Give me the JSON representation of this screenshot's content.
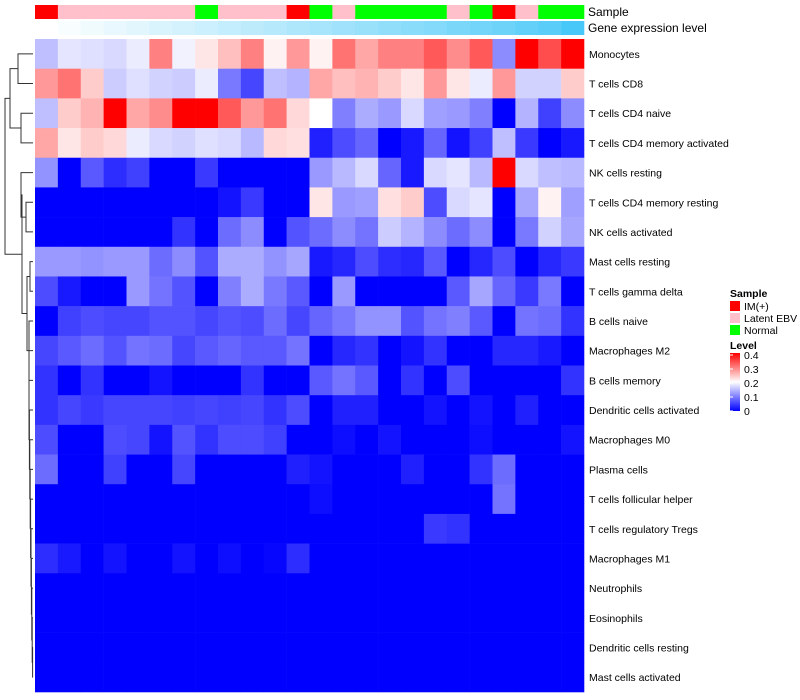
{
  "chart_data": {
    "type": "heatmap",
    "title": "",
    "annotation_labels": {
      "sample": "Sample",
      "gene_expression": "Gene expression level"
    },
    "rows": [
      "Monocytes",
      "T cells CD8",
      "T cells CD4 naive",
      "T cells CD4 memory activated",
      "NK cells resting",
      "T cells CD4 memory resting",
      "NK cells activated",
      "Mast cells resting",
      "T cells gamma delta",
      "B cells naive",
      "Macrophages M2",
      "B cells memory",
      "Dendritic cells activated",
      "Macrophages M0",
      "Plasma cells",
      "T cells follicular helper",
      "T cells regulatory  Tregs",
      "Macrophages M1",
      "Neutrophils",
      "Eosinophils",
      "Dendritic cells resting",
      "Mast cells activated"
    ],
    "sample_groups": [
      "IM(+)",
      "Latent EBV",
      "Latent EBV",
      "Latent EBV",
      "Latent EBV",
      "Latent EBV",
      "Latent EBV",
      "Normal",
      "Latent EBV",
      "Latent EBV",
      "Latent EBV",
      "IM(+)",
      "Normal",
      "Latent EBV",
      "Normal",
      "Normal",
      "Normal",
      "Normal",
      "Latent EBV",
      "Normal",
      "IM(+)",
      "Latent EBV",
      "Normal",
      "Normal"
    ],
    "gene_expression_level": [
      0.0,
      0.04,
      0.08,
      0.12,
      0.16,
      0.2,
      0.24,
      0.28,
      0.32,
      0.36,
      0.4,
      0.44,
      0.48,
      0.52,
      0.56,
      0.6,
      0.64,
      0.68,
      0.72,
      0.76,
      0.8,
      0.85,
      0.9,
      1.0
    ],
    "values": [
      [
        0.15,
        0.18,
        0.175,
        0.17,
        0.185,
        0.3,
        0.19,
        0.22,
        0.25,
        0.3,
        0.21,
        0.28,
        0.21,
        0.31,
        0.27,
        0.3,
        0.3,
        0.33,
        0.29,
        0.33,
        0.11,
        0.4,
        0.34,
        0.4
      ],
      [
        0.28,
        0.31,
        0.24,
        0.16,
        0.175,
        0.165,
        0.16,
        0.185,
        0.095,
        0.055,
        0.15,
        0.14,
        0.27,
        0.25,
        0.26,
        0.24,
        0.22,
        0.28,
        0.22,
        0.185,
        0.28,
        0.165,
        0.165,
        0.24
      ],
      [
        0.15,
        0.24,
        0.26,
        0.4,
        0.27,
        0.29,
        0.4,
        0.4,
        0.33,
        0.28,
        0.31,
        0.23,
        0.2,
        0.1,
        0.135,
        0.12,
        0.17,
        0.125,
        0.12,
        0.1,
        0.0,
        0.14,
        0.05,
        0.11
      ],
      [
        0.27,
        0.22,
        0.24,
        0.23,
        0.185,
        0.17,
        0.165,
        0.175,
        0.17,
        0.145,
        0.23,
        0.225,
        0.025,
        0.06,
        0.08,
        0.0,
        0.02,
        0.08,
        0.015,
        0.05,
        0.15,
        0.045,
        0.0,
        0.02
      ],
      [
        0.115,
        0.0,
        0.07,
        0.035,
        0.05,
        0.0,
        0.0,
        0.045,
        0.0,
        0.0,
        0.0,
        0.0,
        0.12,
        0.145,
        0.17,
        0.08,
        0.02,
        0.17,
        0.18,
        0.145,
        0.4,
        0.17,
        0.15,
        0.145
      ],
      [
        0.0,
        0.0,
        0.0,
        0.0,
        0.0,
        0.0,
        0.0,
        0.0,
        0.015,
        0.045,
        0.0,
        0.0,
        0.22,
        0.12,
        0.125,
        0.225,
        0.24,
        0.06,
        0.17,
        0.18,
        0.0,
        0.13,
        0.21,
        0.125
      ],
      [
        0.0,
        0.0,
        0.0,
        0.0,
        0.0,
        0.0,
        0.04,
        0.0,
        0.085,
        0.11,
        0.0,
        0.065,
        0.085,
        0.11,
        0.09,
        0.16,
        0.14,
        0.11,
        0.085,
        0.11,
        0.0,
        0.095,
        0.165,
        0.13
      ],
      [
        0.12,
        0.12,
        0.115,
        0.12,
        0.12,
        0.085,
        0.11,
        0.065,
        0.135,
        0.135,
        0.115,
        0.13,
        0.02,
        0.03,
        0.06,
        0.035,
        0.03,
        0.07,
        0.0,
        0.03,
        0.06,
        0.0,
        0.03,
        0.045
      ],
      [
        0.06,
        0.02,
        0.0,
        0.0,
        0.12,
        0.09,
        0.065,
        0.0,
        0.1,
        0.135,
        0.095,
        0.07,
        0.0,
        0.12,
        0.0,
        0.0,
        0.0,
        0.0,
        0.07,
        0.13,
        0.08,
        0.045,
        0.095,
        0.0
      ],
      [
        0.0,
        0.05,
        0.06,
        0.055,
        0.055,
        0.065,
        0.065,
        0.055,
        0.065,
        0.06,
        0.085,
        0.055,
        0.08,
        0.095,
        0.115,
        0.115,
        0.065,
        0.09,
        0.1,
        0.07,
        0.0,
        0.09,
        0.085,
        0.04
      ],
      [
        0.055,
        0.07,
        0.085,
        0.065,
        0.09,
        0.085,
        0.055,
        0.07,
        0.08,
        0.07,
        0.07,
        0.09,
        0.0,
        0.03,
        0.04,
        0.0,
        0.015,
        0.04,
        0.0,
        0.0,
        0.03,
        0.03,
        0.02,
        0.0
      ],
      [
        0.04,
        0.0,
        0.04,
        0.0,
        0.0,
        0.015,
        0.0,
        0.0,
        0.0,
        0.04,
        0.0,
        0.0,
        0.07,
        0.09,
        0.07,
        0.0,
        0.04,
        0.0,
        0.06,
        0.0,
        0.0,
        0.0,
        0.0,
        0.04
      ],
      [
        0.04,
        0.055,
        0.045,
        0.055,
        0.055,
        0.055,
        0.05,
        0.055,
        0.05,
        0.055,
        0.04,
        0.06,
        0.0,
        0.025,
        0.025,
        0.0,
        0.0,
        0.015,
        0.0,
        0.015,
        0.0,
        0.025,
        0.0,
        0.0
      ],
      [
        0.06,
        0.0,
        0.0,
        0.06,
        0.055,
        0.015,
        0.065,
        0.04,
        0.06,
        0.06,
        0.05,
        0.0,
        0.0,
        0.01,
        0.0,
        0.015,
        0.0,
        0.0,
        0.0,
        0.01,
        0.0,
        0.0,
        0.0,
        0.015
      ],
      [
        0.085,
        0.0,
        0.0,
        0.05,
        0.0,
        0.0,
        0.055,
        0.0,
        0.0,
        0.0,
        0.0,
        0.025,
        0.015,
        0.0,
        0.0,
        0.0,
        0.025,
        0.0,
        0.0,
        0.04,
        0.085,
        0.0,
        0.0,
        0.0
      ],
      [
        0.0,
        0.0,
        0.0,
        0.0,
        0.0,
        0.0,
        0.0,
        0.0,
        0.0,
        0.0,
        0.0,
        0.0,
        0.01,
        0.0,
        0.0,
        0.0,
        0.0,
        0.0,
        0.0,
        0.0,
        0.09,
        0.0,
        0.0,
        0.0
      ],
      [
        0.0,
        0.0,
        0.0,
        0.0,
        0.0,
        0.0,
        0.0,
        0.0,
        0.0,
        0.0,
        0.0,
        0.0,
        0.0,
        0.0,
        0.0,
        0.0,
        0.0,
        0.045,
        0.04,
        0.0,
        0.0,
        0.0,
        0.0,
        0.0
      ],
      [
        0.035,
        0.02,
        0.0,
        0.015,
        0.0,
        0.0,
        0.015,
        0.0,
        0.01,
        0.0,
        0.005,
        0.035,
        0.0,
        0.0,
        0.0,
        0.0,
        0.0,
        0.0,
        0.0,
        0.0,
        0.0,
        0.0,
        0.0,
        0.0
      ],
      [
        0,
        0,
        0,
        0,
        0,
        0,
        0,
        0,
        0,
        0,
        0,
        0,
        0,
        0,
        0,
        0,
        0,
        0,
        0,
        0,
        0,
        0,
        0,
        0
      ],
      [
        0,
        0,
        0,
        0,
        0,
        0,
        0,
        0,
        0,
        0,
        0,
        0,
        0,
        0,
        0,
        0,
        0,
        0,
        0,
        0,
        0,
        0,
        0,
        0
      ],
      [
        0,
        0,
        0,
        0,
        0,
        0,
        0,
        0,
        0,
        0,
        0,
        0,
        0,
        0,
        0,
        0,
        0,
        0,
        0,
        0,
        0,
        0,
        0,
        0
      ],
      [
        0,
        0,
        0,
        0,
        0,
        0,
        0,
        0,
        0,
        0,
        0,
        0,
        0,
        0,
        0,
        0,
        0,
        0,
        0,
        0,
        0,
        0,
        0,
        0
      ]
    ],
    "color_scale": {
      "low": "#0000ff",
      "mid": "#ffffff",
      "high": "#ff0000",
      "range": [
        0,
        0.4
      ]
    },
    "legend": {
      "sample_title": "Sample",
      "sample_entries": [
        {
          "label": "IM(+)",
          "color": "#ff0000"
        },
        {
          "label": "Latent EBV",
          "color": "#ffc0cb"
        },
        {
          "label": "Normal",
          "color": "#00ff00"
        }
      ],
      "level_title": "Level",
      "level_ticks": [
        "0.4",
        "0.3",
        "0.2",
        "0.1",
        "0"
      ],
      "placement": "right"
    },
    "gene_expression_colors": {
      "low": "#ffffff",
      "high": "#48c8f8"
    }
  }
}
